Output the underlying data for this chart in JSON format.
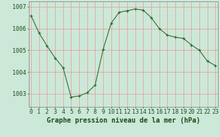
{
  "hours": [
    0,
    1,
    2,
    3,
    4,
    5,
    6,
    7,
    8,
    9,
    10,
    11,
    12,
    13,
    14,
    15,
    16,
    17,
    18,
    19,
    20,
    21,
    22,
    23
  ],
  "pressure": [
    1006.6,
    1005.8,
    1005.2,
    1004.65,
    1004.2,
    1002.85,
    1002.9,
    1003.05,
    1003.4,
    1005.05,
    1006.25,
    1006.75,
    1006.82,
    1006.9,
    1006.85,
    1006.5,
    1006.0,
    1005.7,
    1005.6,
    1005.55,
    1005.25,
    1005.0,
    1004.5,
    1004.3
  ],
  "line_color": "#2d6a2d",
  "background_color": "#cce8d8",
  "grid_color": "#f08080",
  "ylabel_ticks": [
    1003,
    1004,
    1005,
    1006,
    1007
  ],
  "ylim": [
    1002.4,
    1007.25
  ],
  "xlim": [
    -0.3,
    23.3
  ],
  "xlabel": "Graphe pression niveau de la mer (hPa)",
  "xlabel_fontsize": 7.0,
  "tick_fontsize": 6.0,
  "text_color": "#1a4d1a",
  "spine_color": "#888888"
}
